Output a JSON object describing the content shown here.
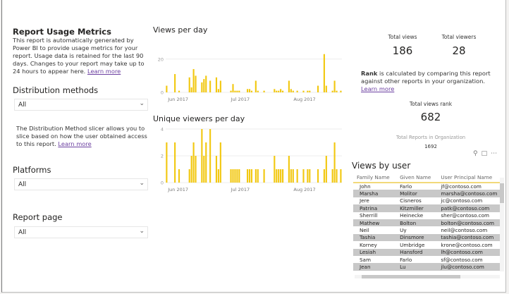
{
  "left": {
    "title": "Report Usage Metrics",
    "description": "This report is automatically generated by Power BI to provide usage metrics for your report. Usage data is retained for the last 90 days. Changes to your report may take up to 24 hours to appear here.",
    "learn_more": "Learn more",
    "distribution_label": "Distribution methods",
    "distribution_value": "All",
    "distribution_note": "The Distribution Method slicer allows you to slice based on how the user obtained access to this report.",
    "platforms_label": "Platforms",
    "platforms_value": "All",
    "report_page_label": "Report page",
    "report_page_value": "All"
  },
  "kpis": {
    "total_views_label": "Total views",
    "total_views": "186",
    "total_viewers_label": "Total viewers",
    "total_viewers": "28",
    "rank_bold": "Rank",
    "rank_text": " is calculated by comparing this report against other reports in your organization. ",
    "learn_more": "Learn more",
    "rank_label": "Total views rank",
    "rank_value": "682",
    "total_reports_label": "Total Reports in Organization",
    "total_reports": "1692"
  },
  "visual_icons": [
    "pin-icon",
    "focus-mode-icon",
    "more-options-icon"
  ],
  "table": {
    "title": "Views by user",
    "columns": [
      "Family Name",
      "Given Name",
      "User Principal Name"
    ],
    "rows": [
      [
        "John",
        "Farlo",
        "jf@contoso.com"
      ],
      [
        "Marsha",
        "Molitor",
        "marsha@contoso.com"
      ],
      [
        "Jere",
        "Cisneros",
        "jc@contoso.com"
      ],
      [
        "Patrina",
        "Kitzmiller",
        "patk@contoso.com"
      ],
      [
        "Sherrill",
        "Heinecke",
        "sher@contoso.com"
      ],
      [
        "Mathew",
        "Bolton",
        "bolton@contoso.com"
      ],
      [
        "Neil",
        "Uy",
        "neil@contoso.com"
      ],
      [
        "Tashia",
        "Dinsmore",
        "tashia@contoso.com"
      ],
      [
        "Korney",
        "Umbridge",
        "krone@contoso.com"
      ],
      [
        "Lesiah",
        "Hansford",
        "lh@contoso.com"
      ],
      [
        "Sam",
        "Farlo",
        "sf@contoso.com"
      ],
      [
        "Jean",
        "Lu",
        "jlu@contoso.com"
      ]
    ]
  },
  "colors": {
    "bar": "#f2c811",
    "link": "#6b3fa0",
    "row_alt": "#c8c8c8"
  },
  "chart_data": [
    {
      "type": "bar",
      "title": "Views per day",
      "xlim": [
        "2017-05-26",
        "2017-08-18"
      ],
      "ylim": [
        0,
        25
      ],
      "yticks": [
        0,
        20
      ],
      "xticks": [
        "Jun 2017",
        "Jul 2017",
        "Aug 2017"
      ],
      "xtick_dates": [
        "2017-06-01",
        "2017-07-01",
        "2017-08-01"
      ],
      "grid": true,
      "points": [
        [
          "2017-05-26",
          4
        ],
        [
          "2017-05-30",
          11
        ],
        [
          "2017-06-01",
          1
        ],
        [
          "2017-06-06",
          9
        ],
        [
          "2017-06-07",
          3
        ],
        [
          "2017-06-08",
          14
        ],
        [
          "2017-06-09",
          10
        ],
        [
          "2017-06-12",
          6
        ],
        [
          "2017-06-13",
          8
        ],
        [
          "2017-06-14",
          10
        ],
        [
          "2017-06-16",
          7
        ],
        [
          "2017-06-19",
          9
        ],
        [
          "2017-06-20",
          2
        ],
        [
          "2017-06-21",
          7
        ],
        [
          "2017-06-26",
          1
        ],
        [
          "2017-06-27",
          5
        ],
        [
          "2017-06-28",
          1
        ],
        [
          "2017-06-29",
          1
        ],
        [
          "2017-06-30",
          1
        ],
        [
          "2017-07-04",
          2
        ],
        [
          "2017-07-05",
          2
        ],
        [
          "2017-07-06",
          1
        ],
        [
          "2017-07-08",
          7
        ],
        [
          "2017-07-09",
          1
        ],
        [
          "2017-07-12",
          1
        ],
        [
          "2017-07-17",
          2
        ],
        [
          "2017-07-18",
          1
        ],
        [
          "2017-07-19",
          1
        ],
        [
          "2017-07-20",
          2
        ],
        [
          "2017-07-21",
          1
        ],
        [
          "2017-07-24",
          7
        ],
        [
          "2017-07-25",
          2
        ],
        [
          "2017-07-26",
          1
        ],
        [
          "2017-07-28",
          1
        ],
        [
          "2017-07-31",
          1
        ],
        [
          "2017-08-02",
          1
        ],
        [
          "2017-08-03",
          1
        ],
        [
          "2017-08-07",
          4
        ],
        [
          "2017-08-10",
          23
        ],
        [
          "2017-08-11",
          4
        ],
        [
          "2017-08-14",
          1
        ],
        [
          "2017-08-15",
          7
        ],
        [
          "2017-08-16",
          1
        ],
        [
          "2017-08-18",
          1
        ]
      ]
    },
    {
      "type": "bar",
      "title": "Unique viewers per day",
      "xlim": [
        "2017-05-26",
        "2017-08-18"
      ],
      "ylim": [
        0,
        4
      ],
      "yticks": [
        0,
        2,
        4
      ],
      "xticks": [
        "Jun 2017",
        "Jul 2017",
        "Aug 2017"
      ],
      "xtick_dates": [
        "2017-06-01",
        "2017-07-01",
        "2017-08-01"
      ],
      "grid": true,
      "points": [
        [
          "2017-05-26",
          3
        ],
        [
          "2017-05-30",
          3
        ],
        [
          "2017-06-01",
          1
        ],
        [
          "2017-06-06",
          1
        ],
        [
          "2017-06-07",
          2
        ],
        [
          "2017-06-08",
          3
        ],
        [
          "2017-06-09",
          2
        ],
        [
          "2017-06-12",
          4
        ],
        [
          "2017-06-13",
          2
        ],
        [
          "2017-06-14",
          3
        ],
        [
          "2017-06-16",
          4
        ],
        [
          "2017-06-19",
          2
        ],
        [
          "2017-06-20",
          1
        ],
        [
          "2017-06-21",
          3
        ],
        [
          "2017-06-26",
          1
        ],
        [
          "2017-06-27",
          1
        ],
        [
          "2017-06-28",
          1
        ],
        [
          "2017-06-29",
          1
        ],
        [
          "2017-06-30",
          1
        ],
        [
          "2017-07-04",
          1
        ],
        [
          "2017-07-05",
          1
        ],
        [
          "2017-07-06",
          1
        ],
        [
          "2017-07-08",
          1
        ],
        [
          "2017-07-09",
          1
        ],
        [
          "2017-07-12",
          1
        ],
        [
          "2017-07-17",
          2
        ],
        [
          "2017-07-18",
          1
        ],
        [
          "2017-07-19",
          1
        ],
        [
          "2017-07-20",
          1
        ],
        [
          "2017-07-21",
          1
        ],
        [
          "2017-07-24",
          2
        ],
        [
          "2017-07-25",
          1
        ],
        [
          "2017-07-26",
          1
        ],
        [
          "2017-07-28",
          1
        ],
        [
          "2017-07-31",
          1
        ],
        [
          "2017-08-02",
          1
        ],
        [
          "2017-08-03",
          1
        ],
        [
          "2017-08-07",
          1
        ],
        [
          "2017-08-10",
          1
        ],
        [
          "2017-08-11",
          2
        ],
        [
          "2017-08-14",
          1
        ],
        [
          "2017-08-15",
          3
        ],
        [
          "2017-08-16",
          1
        ],
        [
          "2017-08-18",
          1
        ]
      ]
    }
  ]
}
